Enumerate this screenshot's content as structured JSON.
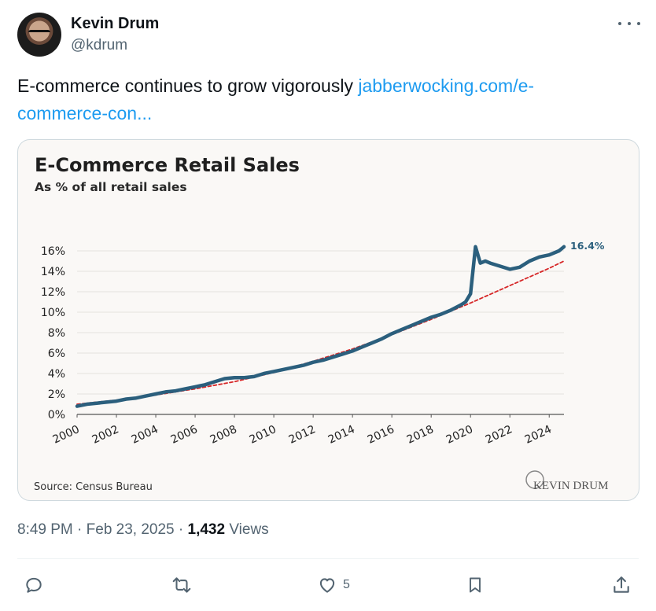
{
  "author": {
    "name": "Kevin Drum",
    "handle": "@kdrum"
  },
  "tweet": {
    "text": "E-commerce continues to grow vigorously ",
    "link_text": "jabberwocking.com/e-commerce-con..."
  },
  "chart": {
    "title": "E-Commerce Retail Sales",
    "subtitle": "As % of all retail sales",
    "source": "Source: Census Bureau",
    "watermark": "KEVIN DRUM",
    "end_label": "16.4%"
  },
  "chart_data": {
    "type": "line",
    "title": "E-Commerce Retail Sales",
    "subtitle": "As % of all retail sales",
    "ylim": [
      0,
      16
    ],
    "y_ticks": [
      "0%",
      "2%",
      "4%",
      "6%",
      "8%",
      "10%",
      "12%",
      "14%",
      "16%"
    ],
    "x_ticks": [
      "2000",
      "2002",
      "2004",
      "2006",
      "2008",
      "2010",
      "2012",
      "2014",
      "2016",
      "2018",
      "2020",
      "2022",
      "2024"
    ],
    "grid": true,
    "series": [
      {
        "color": "#2b5f7d",
        "x": [
          2000.0,
          2000.5,
          2001.0,
          2001.5,
          2002.0,
          2002.5,
          2003.0,
          2003.5,
          2004.0,
          2004.5,
          2005.0,
          2005.5,
          2006.0,
          2006.5,
          2007.0,
          2007.5,
          2008.0,
          2008.5,
          2009.0,
          2009.5,
          2010.0,
          2010.5,
          2011.0,
          2011.5,
          2012.0,
          2012.5,
          2013.0,
          2013.5,
          2014.0,
          2014.5,
          2015.0,
          2015.5,
          2016.0,
          2016.5,
          2017.0,
          2017.5,
          2018.0,
          2018.5,
          2019.0,
          2019.5,
          2019.75,
          2020.0,
          2020.25,
          2020.5,
          2020.75,
          2021.0,
          2021.5,
          2022.0,
          2022.5,
          2023.0,
          2023.5,
          2024.0,
          2024.5,
          2024.75
        ],
        "y": [
          0.8,
          1.0,
          1.1,
          1.2,
          1.3,
          1.5,
          1.6,
          1.8,
          2.0,
          2.2,
          2.3,
          2.5,
          2.7,
          2.9,
          3.2,
          3.5,
          3.6,
          3.6,
          3.7,
          4.0,
          4.2,
          4.4,
          4.6,
          4.8,
          5.1,
          5.3,
          5.6,
          5.9,
          6.2,
          6.6,
          7.0,
          7.4,
          7.9,
          8.3,
          8.7,
          9.1,
          9.5,
          9.8,
          10.2,
          10.7,
          11.0,
          11.8,
          16.4,
          14.8,
          15.0,
          14.8,
          14.5,
          14.2,
          14.4,
          15.0,
          15.4,
          15.6,
          16.0,
          16.4
        ]
      },
      {
        "color": "#d62728",
        "style": "dashed",
        "x": [
          2000,
          2002,
          2004,
          2006,
          2008,
          2010,
          2012,
          2014,
          2016,
          2018,
          2020,
          2022,
          2024,
          2024.75
        ],
        "y": [
          1.0,
          1.4,
          1.9,
          2.5,
          3.2,
          4.1,
          5.2,
          6.4,
          7.8,
          9.3,
          10.9,
          12.6,
          14.3,
          15.0
        ]
      }
    ]
  },
  "timestamp": {
    "time": "8:49 PM · Feb 23, 2025 · ",
    "views_count": "1,432",
    "views_label": " Views"
  },
  "actions": {
    "like_count": "5"
  },
  "colors": {
    "link": "#1d9bf0",
    "line": "#2b5f7d",
    "trend": "#d62728",
    "muted": "#536471"
  }
}
